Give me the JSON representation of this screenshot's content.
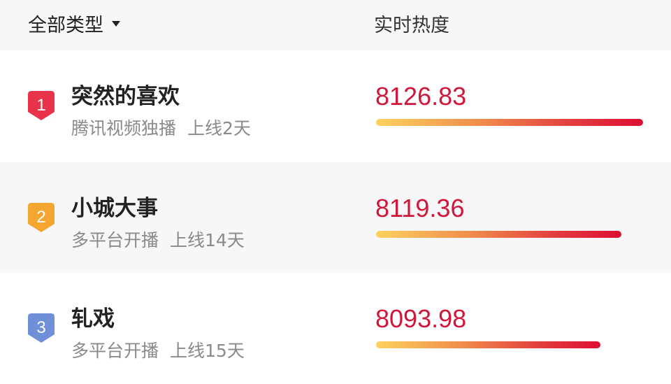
{
  "header": {
    "filter_label": "全部类型",
    "heat_label": "实时热度"
  },
  "items": [
    {
      "rank": "1",
      "title": "突然的喜欢",
      "platform": "腾讯视频独播",
      "online": "上线2天",
      "heat": "8126.83",
      "bar_fraction": 1.0,
      "badge_color": "#e8334a"
    },
    {
      "rank": "2",
      "title": "小城大事",
      "platform": "多平台开播",
      "online": "上线14天",
      "heat": "8119.36",
      "bar_fraction": 0.92,
      "badge_color": "#f5a630"
    },
    {
      "rank": "3",
      "title": "轧戏",
      "platform": "多平台开播",
      "online": "上线15天",
      "heat": "8093.98",
      "bar_fraction": 0.84,
      "badge_color": "#6f8fd8"
    }
  ]
}
